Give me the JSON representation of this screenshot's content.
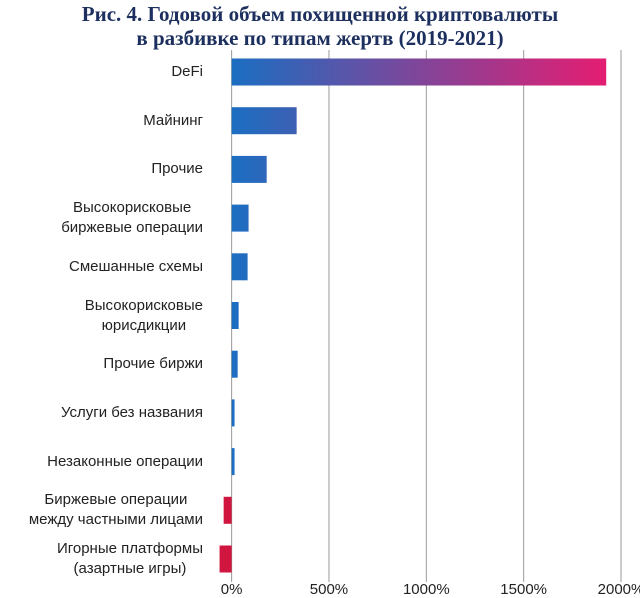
{
  "chart_data": {
    "type": "hbar",
    "title": "Рис. 4. Годовой объем похищенной криптовалюты\nв разбивке по типам жертв (2019-2021)",
    "categories": [
      "DeFi",
      "Майнинг",
      "Прочие",
      "Высокорисковые\nбиржевые операции",
      "Смешанные схемы",
      "Высокорисковые\nюрисдикции",
      "Прочие биржи",
      "Услуги без названия",
      "Незаконные операции",
      "Биржевые операции\nмежду частными лицами",
      "Игорные платформы\n(азартные игры)"
    ],
    "values": [
      1924,
      334,
      180,
      87,
      82,
      36,
      31,
      15,
      15,
      -41,
      -62
    ],
    "colors": {
      "start": "#1b6ec2",
      "end": "#ec1a6e",
      "negative": "#d0163f"
    },
    "xlim": [
      -70,
      2000
    ],
    "xticks": [
      {
        "value": 0,
        "label": "0%"
      },
      {
        "value": 500,
        "label": "500%"
      },
      {
        "value": 1000,
        "label": "1000%"
      },
      {
        "value": 1500,
        "label": "1500%"
      },
      {
        "value": 2000,
        "label": "2000%"
      }
    ],
    "grid": true
  }
}
